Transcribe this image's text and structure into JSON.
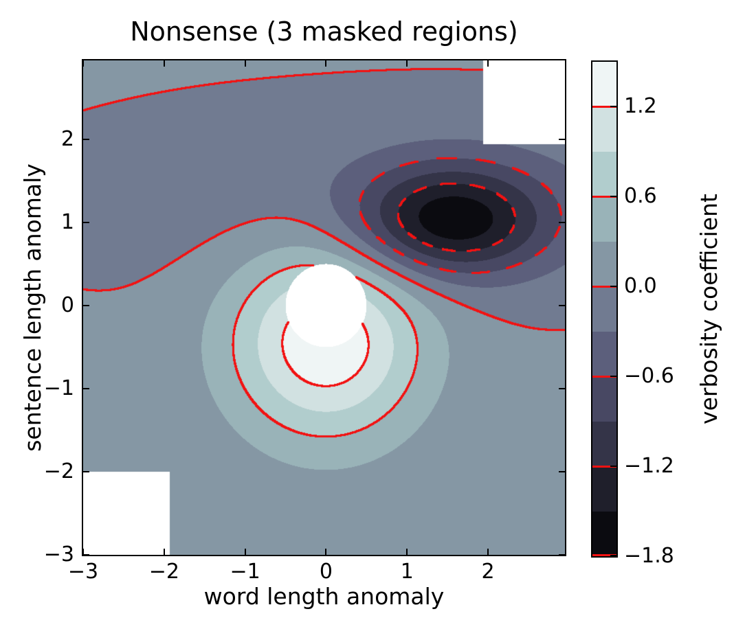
{
  "chart_data": {
    "type": "contour",
    "title": "Nonsense (3 masked regions)",
    "xlabel": "word length anomaly",
    "ylabel": "sentence length anomaly",
    "x_range": [
      -3,
      2.95
    ],
    "y_range": [
      -3,
      2.95
    ],
    "x_ticks": [
      {
        "v": -3,
        "label": "−3"
      },
      {
        "v": -2,
        "label": "−2"
      },
      {
        "v": -1,
        "label": "−1"
      },
      {
        "v": 0,
        "label": "0"
      },
      {
        "v": 1,
        "label": "1"
      },
      {
        "v": 2,
        "label": "2"
      }
    ],
    "y_ticks": [
      {
        "v": -3,
        "label": "−3"
      },
      {
        "v": -2,
        "label": "−2"
      },
      {
        "v": -1,
        "label": "−1"
      },
      {
        "v": 0,
        "label": "0"
      },
      {
        "v": 1,
        "label": "1"
      },
      {
        "v": 2,
        "label": "2"
      }
    ],
    "fill_level_min": -1.8,
    "fill_level_max": 1.5,
    "fill_level_step": 0.3,
    "colormap": "bone",
    "band_colors": [
      "#0b0b10",
      "#1f1f2b",
      "#343448",
      "#484863",
      "#5c5f7c",
      "#717b91",
      "#8597a4",
      "#99b3b8",
      "#b1cdcd",
      "#d1e1e1",
      "#eff5f5"
    ],
    "masked_color": "#ffffff",
    "contour_line_color": "#f21212",
    "contour_lines": [
      {
        "level": -1.8,
        "style": "solid",
        "dash_count": 0
      },
      {
        "level": -1.2,
        "style": "dashed",
        "dash_count": 27
      },
      {
        "level": -0.6,
        "style": "dashed",
        "dash_count": 35
      },
      {
        "level": 0.0,
        "style": "solid",
        "dash_count": 0
      },
      {
        "level": 0.6,
        "style": "solid",
        "dash_count": 0
      },
      {
        "level": 1.2,
        "style": "solid",
        "dash_count": 0
      }
    ],
    "field_model": {
      "base": 0.03,
      "gaussians": [
        {
          "amp": 1.45,
          "cx": 0.0,
          "cy": -0.42,
          "sx": 0.85,
          "sy": 0.85
        },
        {
          "amp": -1.55,
          "cx": 1.55,
          "cy": 1.02,
          "sx": 0.82,
          "sy": 0.46
        },
        {
          "amp": -0.3,
          "cx": 1.2,
          "cy": 1.25,
          "sx": 2.7,
          "sy": 0.74
        }
      ]
    },
    "masked_regions": [
      {
        "type": "circle",
        "cx": 0.0,
        "cy": 0.0,
        "r": 0.5
      },
      {
        "type": "rect",
        "x0": -3.0,
        "x1": -1.93,
        "y0": -3.0,
        "y1": -2.0
      },
      {
        "type": "rect",
        "x0": 1.94,
        "x1": 2.95,
        "y0": 1.94,
        "y1": 2.95
      }
    ],
    "colorbar": {
      "label": "verbosity coefficient",
      "ticks": [
        {
          "v": 1.2,
          "label": "1.2"
        },
        {
          "v": 0.6,
          "label": "0.6"
        },
        {
          "v": 0.0,
          "label": "0.0"
        },
        {
          "v": -0.6,
          "label": "−0.6"
        },
        {
          "v": -1.2,
          "label": "−1.2"
        },
        {
          "v": -1.8,
          "label": "−1.8"
        }
      ]
    }
  }
}
